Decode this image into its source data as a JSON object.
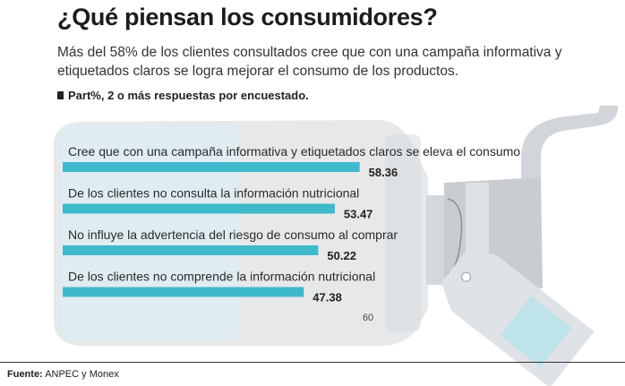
{
  "title": "¿Qué piensan los consumidores?",
  "subtitle": "Más del 58% de los clientes consultados cree que con una campaña informativa y etiquetados claros se logra mejorar el consumo de los productos.",
  "unit_note": "Part%, 2 o más respuestas por encuestado.",
  "source": {
    "label": "Fuente:",
    "text": "ANPEC y Monex"
  },
  "colors": {
    "bar": "#3fb9cc",
    "bottle": "#e6e8ea",
    "bottle_highlight": "#dcf0f5",
    "pump": "#c9cdd1",
    "tag": "#dfe3e7",
    "tag_square": "#bfe3ea"
  },
  "chart_data": {
    "type": "bar",
    "orientation": "horizontal",
    "categories": [
      "Cree que con una campaña informativa y etiquetados claros se eleva el consumo",
      "De los clientes no consulta la información nutricional",
      "No influye la advertencia del riesgo de consumo al comprar",
      "De los clientes no comprende la información nutricional"
    ],
    "values": [
      58.36,
      53.47,
      50.22,
      47.38
    ],
    "value_labels": [
      "58.36",
      "53.47",
      "50.22",
      "47.38"
    ],
    "xlim": [
      0,
      60
    ],
    "x_ticks": [
      60
    ],
    "x_tick_labels": [
      "60"
    ],
    "title": "¿Qué piensan los consumidores?",
    "xlabel": "",
    "ylabel": ""
  }
}
